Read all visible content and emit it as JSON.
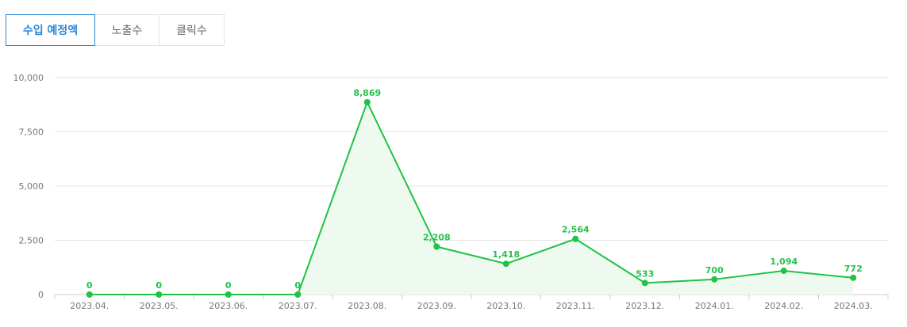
{
  "tabs": [
    {
      "label": "수입 예정액",
      "active": true
    },
    {
      "label": "노출수",
      "active": false
    },
    {
      "label": "클릭수",
      "active": false
    }
  ],
  "colors": {
    "line": "#1fc345",
    "area": "#eefaf0",
    "tab_active": "#2a88d8",
    "grid": "#e6e6e6"
  },
  "chart_data": {
    "type": "area",
    "x": [
      "2023.04.",
      "2023.05.",
      "2023.06.",
      "2023.07.",
      "2023.08.",
      "2023.09.",
      "2023.10.",
      "2023.11.",
      "2023.12.",
      "2024.01.",
      "2024.02.",
      "2024.03."
    ],
    "values": [
      0,
      0,
      0,
      0,
      8869,
      2208,
      1418,
      2564,
      533,
      700,
      1094,
      772
    ],
    "value_labels": [
      "0",
      "0",
      "0",
      "0",
      "8,869",
      "2,208",
      "1,418",
      "2,564",
      "533",
      "700",
      "1,094",
      "772"
    ],
    "yticks": [
      0,
      2500,
      5000,
      7500,
      10000
    ],
    "ytick_labels": [
      "0",
      "2,500",
      "5,000",
      "7,500",
      "10,000"
    ],
    "ylim": [
      0,
      10000
    ],
    "title": "",
    "xlabel": "",
    "ylabel": "",
    "grid": true,
    "legend": "none"
  }
}
